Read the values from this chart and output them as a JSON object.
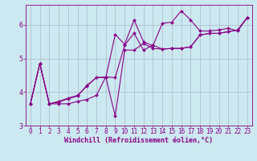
{
  "xlabel": "Windchill (Refroidissement éolien,°C)",
  "bg_color": "#cce8f0",
  "line_color": "#880088",
  "grid_color": "#aabbcc",
  "x": [
    0,
    1,
    2,
    3,
    4,
    5,
    6,
    7,
    8,
    9,
    10,
    11,
    12,
    13,
    14,
    15,
    16,
    17,
    18,
    19,
    20,
    21,
    22,
    23
  ],
  "y_line1": [
    3.65,
    4.85,
    3.65,
    3.65,
    3.65,
    3.72,
    3.78,
    3.9,
    4.45,
    3.28,
    5.25,
    5.25,
    5.45,
    5.3,
    5.28,
    5.3,
    5.3,
    5.35,
    5.7,
    5.75,
    5.75,
    5.8,
    5.85,
    6.22
  ],
  "y_line2": [
    3.65,
    4.85,
    3.65,
    3.72,
    3.82,
    3.9,
    4.18,
    4.43,
    4.45,
    4.43,
    5.4,
    5.75,
    5.25,
    5.4,
    5.28,
    5.3,
    5.3,
    5.35,
    5.7,
    5.75,
    5.75,
    5.8,
    5.85,
    6.22
  ],
  "y_line3": [
    3.65,
    4.85,
    3.65,
    3.7,
    3.8,
    3.88,
    4.2,
    4.43,
    4.43,
    5.72,
    5.42,
    6.15,
    5.5,
    5.38,
    6.05,
    6.08,
    6.42,
    6.15,
    5.82,
    5.82,
    5.85,
    5.9,
    5.82,
    6.22
  ],
  "ylim": [
    3.0,
    6.6
  ],
  "xlim": [
    -0.5,
    23.5
  ],
  "yticks": [
    3,
    4,
    5,
    6
  ],
  "xticks": [
    0,
    1,
    2,
    3,
    4,
    5,
    6,
    7,
    8,
    9,
    10,
    11,
    12,
    13,
    14,
    15,
    16,
    17,
    18,
    19,
    20,
    21,
    22,
    23
  ],
  "xlabel_fontsize": 6,
  "tick_fontsize": 5.5
}
